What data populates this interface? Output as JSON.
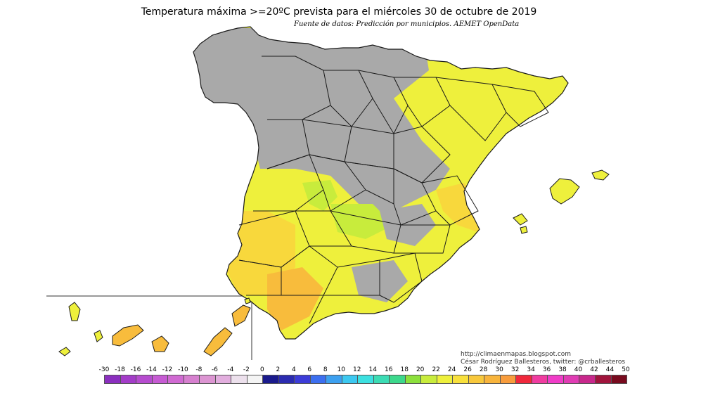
{
  "header": {
    "title": "Temperatura máxima >=20ºC prevista para el miércoles 30 de octubre de 2019",
    "subtitle": "Fuente de datos: Predicción por municipios. AEMET OpenData"
  },
  "credits": {
    "url": "http://climaenmapas.blogspot.com",
    "author": "César Rodríguez Ballesteros, twitter: @crballesteros"
  },
  "legend": {
    "labels": [
      "-30",
      "-18",
      "-16",
      "-14",
      "-12",
      "-10",
      "-8",
      "-6",
      "-4",
      "-2",
      "0",
      "2",
      "4",
      "6",
      "8",
      "10",
      "12",
      "14",
      "16",
      "18",
      "20",
      "22",
      "24",
      "26",
      "28",
      "30",
      "32",
      "34",
      "36",
      "38",
      "40",
      "42",
      "44",
      "50"
    ],
    "colors": [
      "#8b2fbf",
      "#a33cc8",
      "#b64ccf",
      "#c65bd3",
      "#d06ad2",
      "#d680cf",
      "#dc95d2",
      "#e2aede",
      "#ece0ec",
      "#f4f4f4",
      "#1a1a8c",
      "#2b2bb0",
      "#3c3cd8",
      "#3c6ff0",
      "#3ca0f0",
      "#3cc8f0",
      "#3ce0e0",
      "#3cdcb4",
      "#3cd88c",
      "#8ce03c",
      "#c8ec3c",
      "#eef03c",
      "#f8e03c",
      "#f8c83c",
      "#f8b43c",
      "#f89c3c",
      "#f0283c",
      "#f03ca0",
      "#f03cc8",
      "#e03cb4",
      "#c8288c",
      "#a0143c",
      "#780a1e"
    ]
  },
  "map": {
    "ocean": "#ffffff",
    "below_threshold": "#a9a9a9",
    "warm_20_22": "#c8ec3c",
    "warm_22_24": "#eef03c",
    "warm_24_26": "#f8d83c",
    "warm_26_28": "#f8bc3c",
    "warm_28_30": "#f8a43c",
    "border_color": "#1a1a1a"
  }
}
